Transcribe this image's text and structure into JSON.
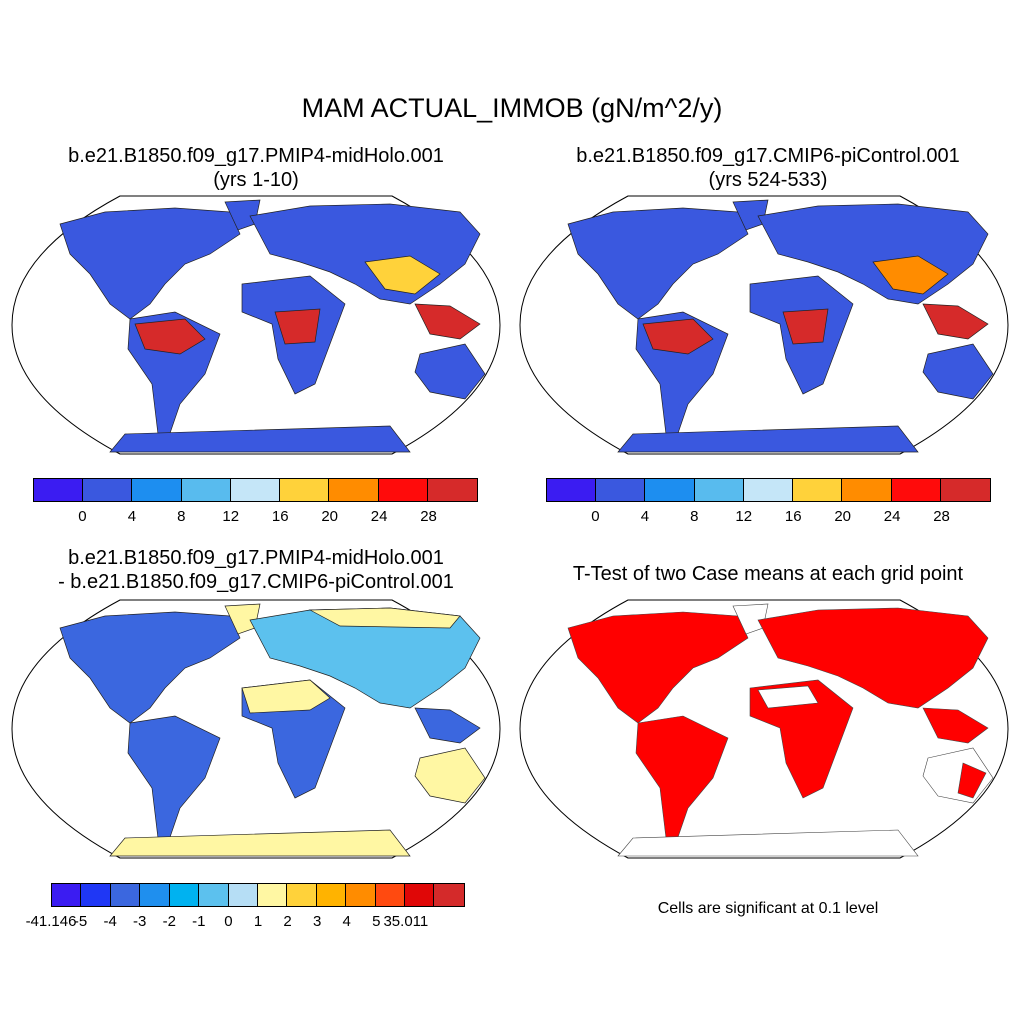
{
  "title": "MAM ACTUAL_IMMOB (gN/m^2/y)",
  "panels": [
    {
      "title_line1": "b.e21.B1850.f09_g17.PMIP4-midHolo.001",
      "title_line2": "(yrs 1-10)",
      "colorbar": {
        "colors": [
          "#3b1cf2",
          "#3a58df",
          "#1d8ef0",
          "#58bbee",
          "#c5e6f8",
          "#ffd23a",
          "#ff8c00",
          "#ff0b0b",
          "#d62a2a"
        ],
        "tick_labels": [
          "0",
          "4",
          "8",
          "12",
          "16",
          "20",
          "24",
          "28"
        ]
      }
    },
    {
      "title_line1": "b.e21.B1850.f09_g17.CMIP6-piControl.001",
      "title_line2": "(yrs 524-533)",
      "colorbar": {
        "colors": [
          "#3b1cf2",
          "#3a58df",
          "#1d8ef0",
          "#58bbee",
          "#c5e6f8",
          "#ffd23a",
          "#ff8c00",
          "#ff0b0b",
          "#d62a2a"
        ],
        "tick_labels": [
          "0",
          "4",
          "8",
          "12",
          "16",
          "20",
          "24",
          "28"
        ]
      }
    },
    {
      "title_line1": "b.e21.B1850.f09_g17.PMIP4-midHolo.001",
      "title_line2": "- b.e21.B1850.f09_g17.CMIP6-piControl.001",
      "colorbar": {
        "colors": [
          "#3b1cf2",
          "#1f37f5",
          "#3b67df",
          "#1f8fee",
          "#00b2f0",
          "#5cc1ee",
          "#b6def5",
          "#fff7a3",
          "#ffd23a",
          "#ffb300",
          "#ff8c00",
          "#ff4a10",
          "#e00707",
          "#d42a2a"
        ],
        "tick_labels": [
          "-41.146",
          "-5",
          "-4",
          "-3",
          "-2",
          "-1",
          "0",
          "1",
          "2",
          "3",
          "4",
          "5",
          "35.011"
        ]
      }
    },
    {
      "title_line1": "T-Test of two Case means at each grid point",
      "note": "Cells are significant at 0.1 level",
      "significance_color": "#ff0000"
    }
  ]
}
